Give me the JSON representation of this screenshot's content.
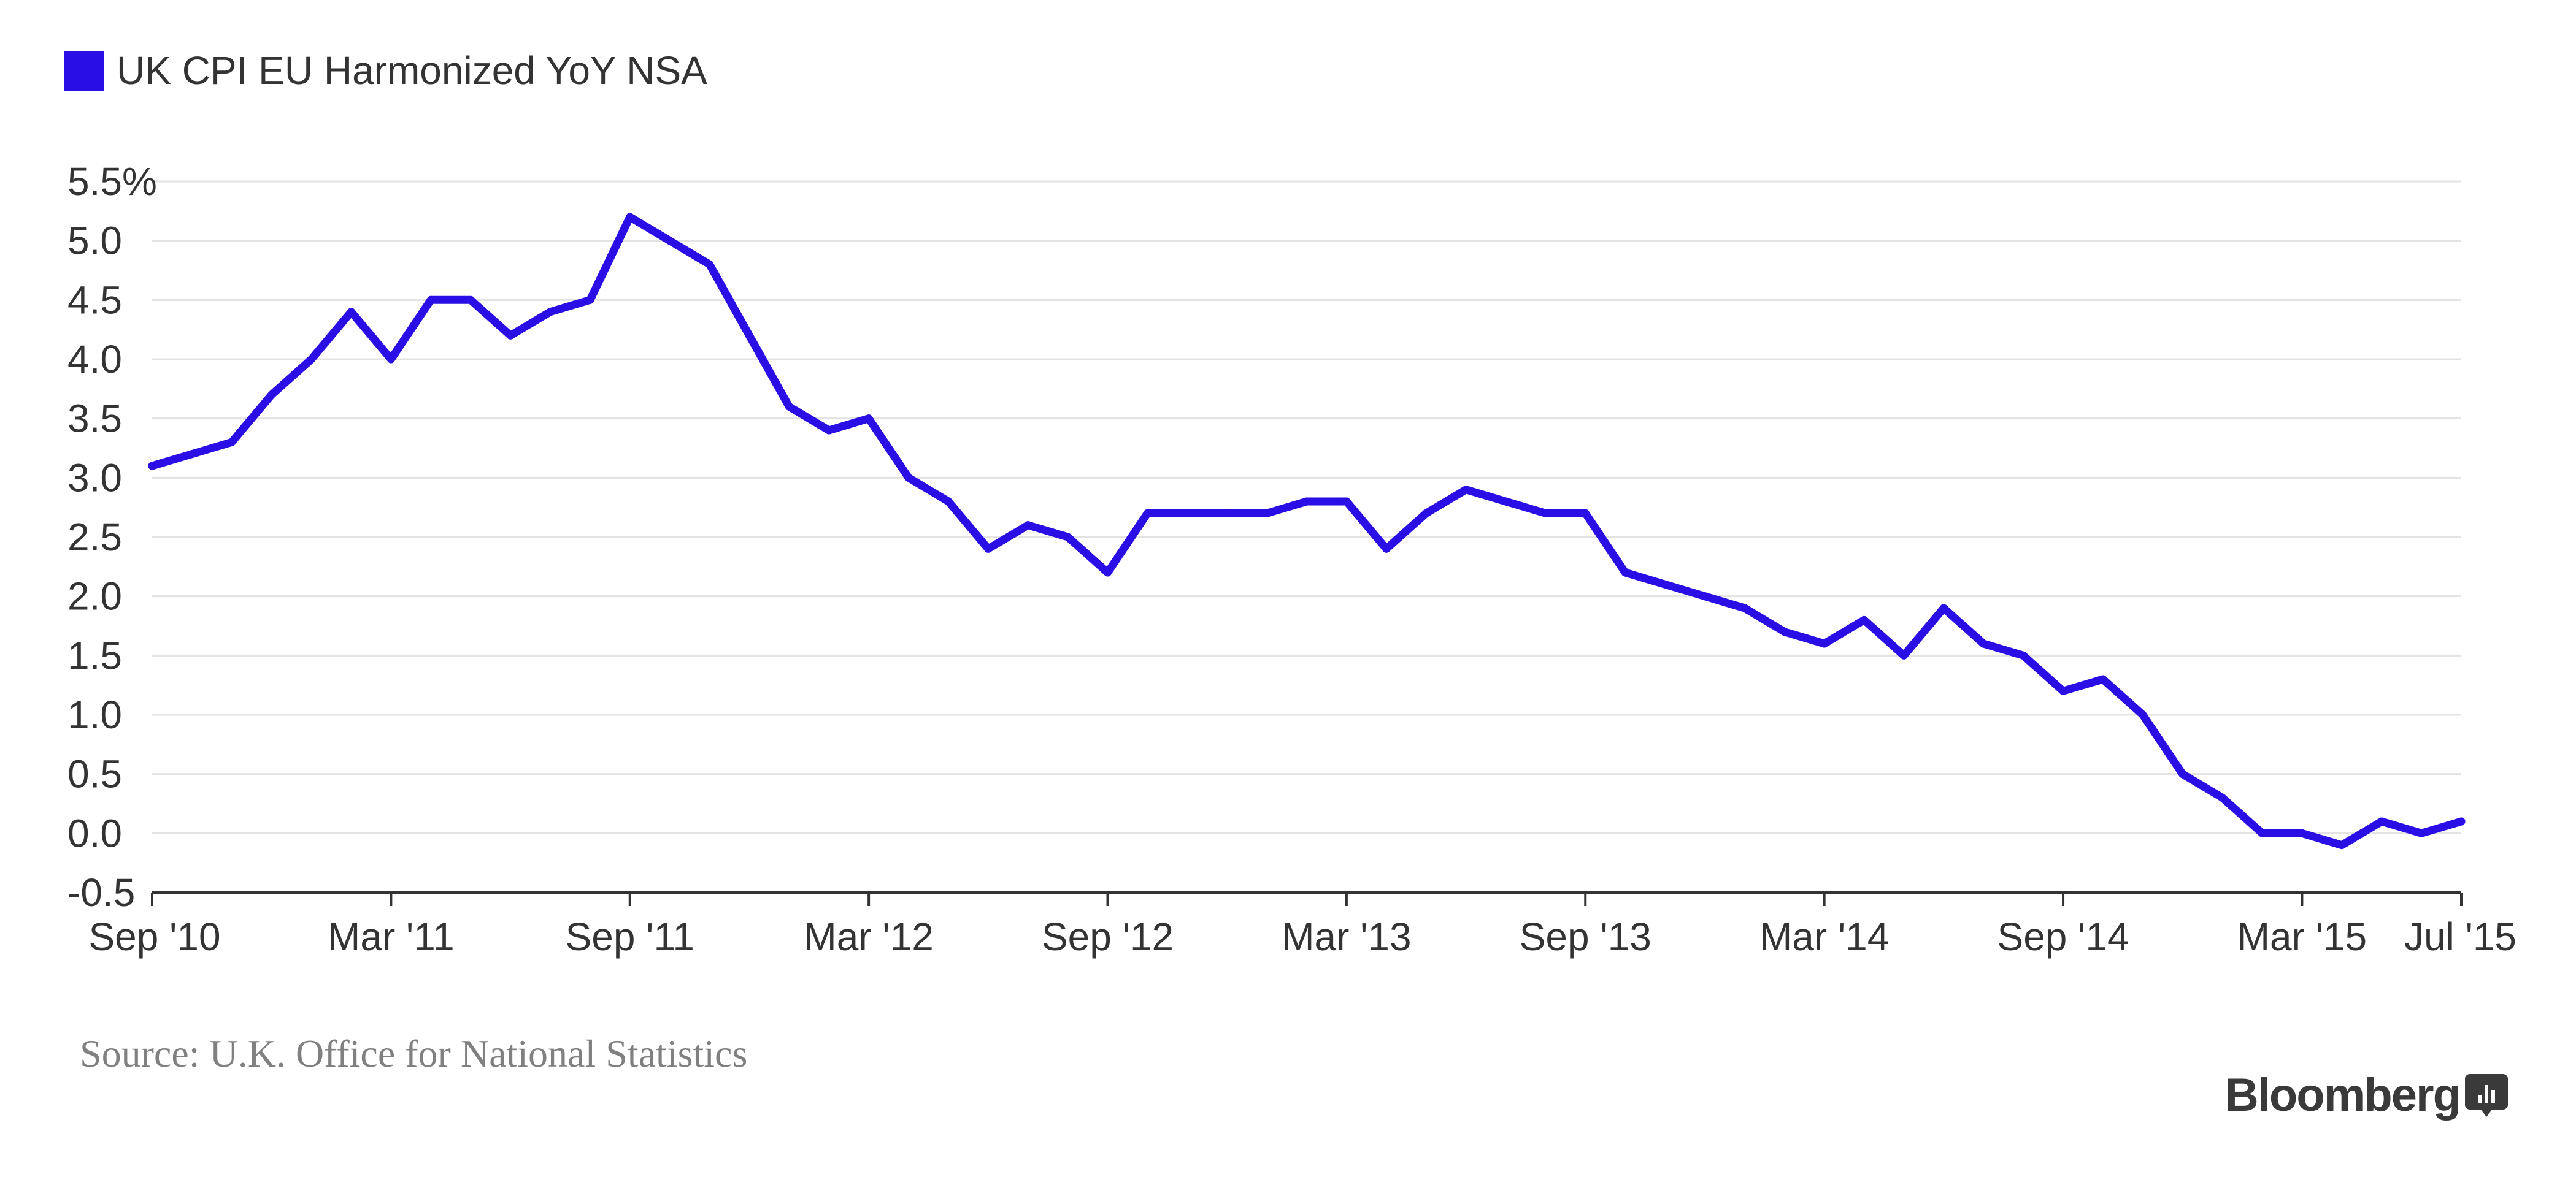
{
  "chart_data": {
    "type": "line",
    "title": "",
    "xlabel": "",
    "ylabel": "",
    "ylim": [
      -0.5,
      5.5
    ],
    "grid": true,
    "legend": {
      "placement": "top-left",
      "entries": [
        {
          "label": "UK CPI EU Harmonized YoY NSA",
          "color": "#2a0ee6"
        }
      ]
    },
    "y_ticks": [
      {
        "value": 5.5,
        "label": "5.5%"
      },
      {
        "value": 5.0,
        "label": "5.0"
      },
      {
        "value": 4.5,
        "label": "4.5"
      },
      {
        "value": 4.0,
        "label": "4.0"
      },
      {
        "value": 3.5,
        "label": "3.5"
      },
      {
        "value": 3.0,
        "label": "3.0"
      },
      {
        "value": 2.5,
        "label": "2.5"
      },
      {
        "value": 2.0,
        "label": "2.0"
      },
      {
        "value": 1.5,
        "label": "1.5"
      },
      {
        "value": 1.0,
        "label": "1.0"
      },
      {
        "value": 0.5,
        "label": "0.5"
      },
      {
        "value": 0.0,
        "label": "0.0"
      },
      {
        "value": -0.5,
        "label": "-0.5"
      }
    ],
    "x_ticks": [
      {
        "index": 0,
        "label": "Sep '10"
      },
      {
        "index": 6,
        "label": "Mar '11"
      },
      {
        "index": 12,
        "label": "Sep '11"
      },
      {
        "index": 18,
        "label": "Mar '12"
      },
      {
        "index": 24,
        "label": "Sep '12"
      },
      {
        "index": 30,
        "label": "Mar '13"
      },
      {
        "index": 36,
        "label": "Sep '13"
      },
      {
        "index": 42,
        "label": "Mar '14"
      },
      {
        "index": 48,
        "label": "Sep '14"
      },
      {
        "index": 54,
        "label": "Mar '15"
      },
      {
        "index": 58,
        "label": "Jul '15"
      }
    ],
    "series": [
      {
        "name": "UK CPI EU Harmonized YoY NSA",
        "color": "#2a0ee6",
        "x": [
          "2010-09",
          "2010-10",
          "2010-11",
          "2010-12",
          "2011-01",
          "2011-02",
          "2011-03",
          "2011-04",
          "2011-05",
          "2011-06",
          "2011-07",
          "2011-08",
          "2011-09",
          "2011-10",
          "2011-11",
          "2011-12",
          "2012-01",
          "2012-02",
          "2012-03",
          "2012-04",
          "2012-05",
          "2012-06",
          "2012-07",
          "2012-08",
          "2012-09",
          "2012-10",
          "2012-11",
          "2012-12",
          "2013-01",
          "2013-02",
          "2013-03",
          "2013-04",
          "2013-05",
          "2013-06",
          "2013-07",
          "2013-08",
          "2013-09",
          "2013-10",
          "2013-11",
          "2013-12",
          "2014-01",
          "2014-02",
          "2014-03",
          "2014-04",
          "2014-05",
          "2014-06",
          "2014-07",
          "2014-08",
          "2014-09",
          "2014-10",
          "2014-11",
          "2014-12",
          "2015-01",
          "2015-02",
          "2015-03",
          "2015-04",
          "2015-05",
          "2015-06",
          "2015-07"
        ],
        "values": [
          3.1,
          3.2,
          3.3,
          3.7,
          4.0,
          4.4,
          4.0,
          4.5,
          4.5,
          4.2,
          4.4,
          4.5,
          5.2,
          5.0,
          4.8,
          4.2,
          3.6,
          3.4,
          3.5,
          3.0,
          2.8,
          2.4,
          2.6,
          2.5,
          2.2,
          2.7,
          2.7,
          2.7,
          2.7,
          2.8,
          2.8,
          2.4,
          2.7,
          2.9,
          2.8,
          2.7,
          2.7,
          2.2,
          2.1,
          2.0,
          1.9,
          1.7,
          1.6,
          1.8,
          1.5,
          1.9,
          1.6,
          1.5,
          1.2,
          1.3,
          1.0,
          0.5,
          0.3,
          0.0,
          0.0,
          -0.1,
          0.1,
          0.0,
          0.1
        ]
      }
    ]
  },
  "footer": {
    "source": "Source: U.K. Office for National Statistics",
    "brand": "Bloomberg"
  },
  "icons": {
    "brand_icon": "bloomberg-chart-icon"
  }
}
